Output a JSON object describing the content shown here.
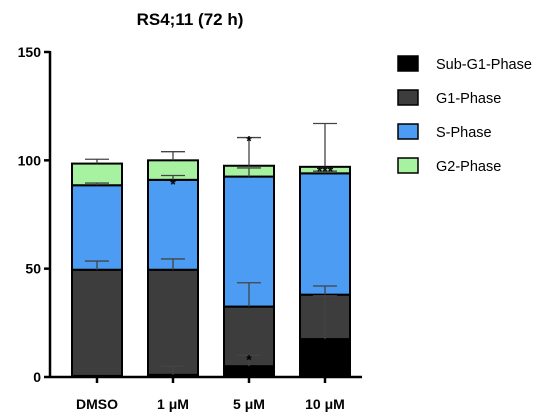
{
  "chart_data": {
    "type": "bar",
    "stacked": true,
    "title": "RS4;11 (72 h)",
    "xlabel": "",
    "ylabel": "",
    "ylim": [
      0,
      150
    ],
    "yticks": [
      0,
      50,
      100,
      150
    ],
    "categories": [
      "DMSO",
      "1 μM",
      "5 μM",
      "10 μM"
    ],
    "series": [
      {
        "name": "Sub-G1-Phase",
        "color": "#000000",
        "values": [
          0.5,
          1.0,
          5.0,
          17.5
        ],
        "error": [
          0,
          4,
          5,
          20
        ]
      },
      {
        "name": "G1-Phase",
        "color": "#3d3d3d",
        "values": [
          49.0,
          48.5,
          27.5,
          20.5
        ],
        "error": [
          4,
          5,
          11,
          4
        ]
      },
      {
        "name": "S-Phase",
        "color": "#4b9cf2",
        "values": [
          39.0,
          41.5,
          60.0,
          56.0
        ],
        "error": [
          1,
          2,
          4,
          1
        ]
      },
      {
        "name": "G2-Phase",
        "color": "#a6f2a0",
        "values": [
          10.0,
          9.0,
          5.0,
          3.0
        ],
        "error": [
          2,
          4,
          13,
          20
        ]
      }
    ],
    "annotations": [
      {
        "category": "1 μM",
        "y": 91,
        "text": "*"
      },
      {
        "category": "5 μM",
        "y": 111,
        "text": "*"
      },
      {
        "category": "5 μM",
        "y": 10,
        "text": "*"
      },
      {
        "category": "10 μM",
        "y": 97,
        "text": "***"
      }
    ],
    "grid": false,
    "legend_position": "right"
  }
}
